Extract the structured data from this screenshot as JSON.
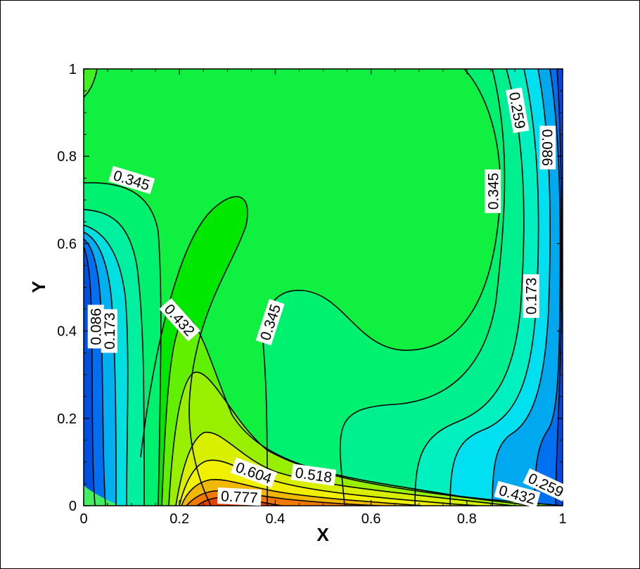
{
  "chart_data": {
    "type": "contour",
    "title": "",
    "xlabel": "X",
    "ylabel": "Y",
    "xlim": [
      0,
      1
    ],
    "ylim": [
      0,
      1
    ],
    "x_ticks": [
      "0",
      "0.2",
      "0.4",
      "0.6",
      "0.8",
      "1"
    ],
    "y_ticks": [
      "0",
      "0.2",
      "0.4",
      "0.6",
      "0.8",
      "1"
    ],
    "grid": false,
    "legend": "none",
    "contour_labels": [
      {
        "text": "0.345",
        "x": 0.1,
        "y": 0.745,
        "angle": 17
      },
      {
        "text": "0.259",
        "x": 0.905,
        "y": 0.905,
        "angle": 80
      },
      {
        "text": "0.086",
        "x": 0.968,
        "y": 0.82,
        "angle": 90
      },
      {
        "text": "0.345",
        "x": 0.855,
        "y": 0.72,
        "angle": -90
      },
      {
        "text": "0.432",
        "x": 0.2,
        "y": 0.425,
        "angle": 48
      },
      {
        "text": "0.345",
        "x": 0.39,
        "y": 0.42,
        "angle": -72
      },
      {
        "text": "0.173",
        "x": 0.935,
        "y": 0.48,
        "angle": -90
      },
      {
        "text": "0.086",
        "x": 0.026,
        "y": 0.41,
        "angle": -90
      },
      {
        "text": "0.173",
        "x": 0.054,
        "y": 0.4,
        "angle": -90
      },
      {
        "text": "0.604",
        "x": 0.355,
        "y": 0.075,
        "angle": 20
      },
      {
        "text": "0.518",
        "x": 0.48,
        "y": 0.07,
        "angle": 8
      },
      {
        "text": "0.777",
        "x": 0.325,
        "y": 0.02,
        "angle": 3
      },
      {
        "text": "0.259",
        "x": 0.965,
        "y": 0.047,
        "angle": 25
      },
      {
        "text": "0.432",
        "x": 0.905,
        "y": 0.025,
        "angle": 15
      }
    ]
  }
}
